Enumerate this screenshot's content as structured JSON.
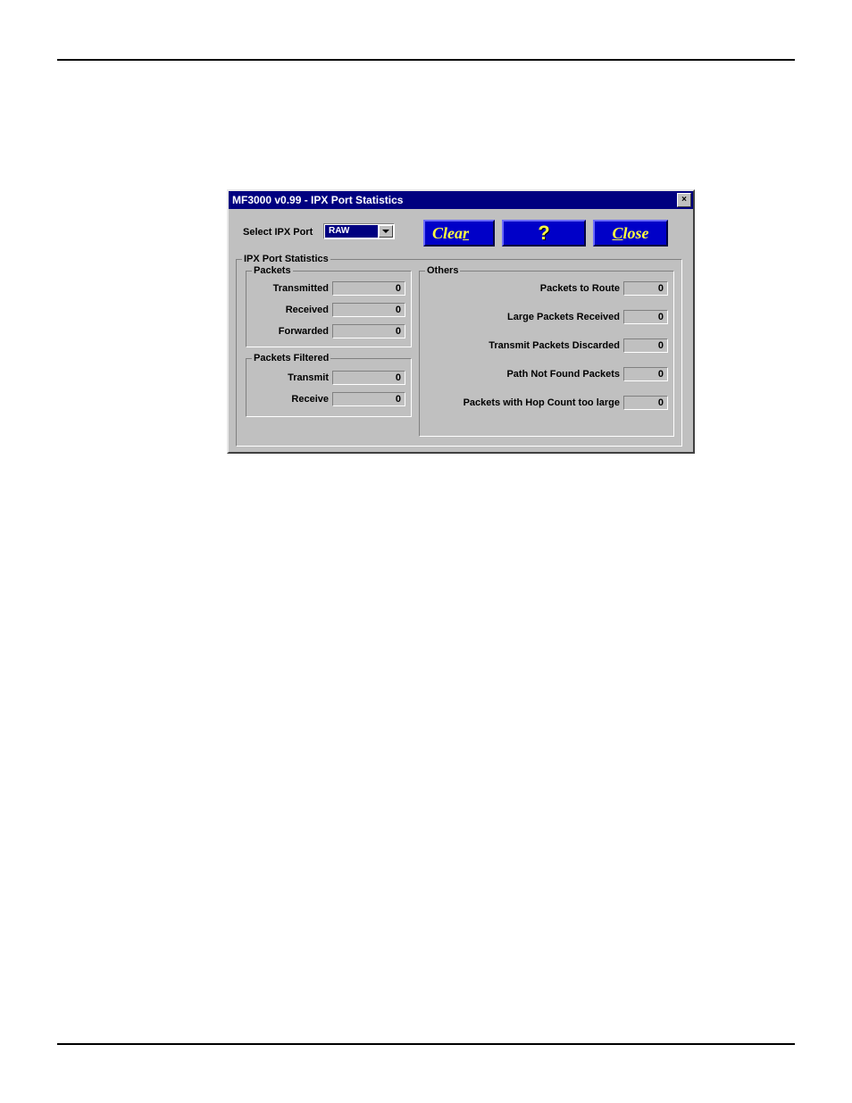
{
  "theme": {
    "page_bg": "#ffffff",
    "window_bg": "#c0c0c0",
    "titlebar_bg": "#000080",
    "titlebar_fg": "#ffffff",
    "button_bg": "#0000c8",
    "button_fg": "#ffff40",
    "selection_bg": "#000080",
    "selection_fg": "#ffffff",
    "border_light": "#ffffff",
    "border_dark": "#808080",
    "border_darker": "#404040"
  },
  "window": {
    "title": "MF3000 v0.99 - IPX Port Statistics",
    "close_x": "✕"
  },
  "top": {
    "select_label": "Select IPX Port",
    "select_value": "RAW"
  },
  "buttons": {
    "clear_pre": "Clea",
    "clear_accel": "r",
    "clear_post": "",
    "help_glyph": "?",
    "close_pre": "",
    "close_accel": "C",
    "close_post": "lose"
  },
  "stats": {
    "group_label": "IPX Port Statistics",
    "packets": {
      "label": "Packets",
      "rows": {
        "transmitted": {
          "label": "Transmitted",
          "value": "0"
        },
        "received": {
          "label": "Received",
          "value": "0"
        },
        "forwarded": {
          "label": "Forwarded",
          "value": "0"
        }
      }
    },
    "filtered": {
      "label": "Packets Filtered",
      "rows": {
        "transmit": {
          "label": "Transmit",
          "value": "0"
        },
        "receive": {
          "label": "Receive",
          "value": "0"
        }
      }
    },
    "others": {
      "label": "Others",
      "rows": {
        "to_route": {
          "label": "Packets to Route",
          "value": "0"
        },
        "large_rx": {
          "label": "Large Packets Received",
          "value": "0"
        },
        "tx_disc": {
          "label": "Transmit Packets Discarded",
          "value": "0"
        },
        "path_nf": {
          "label": "Path Not Found Packets",
          "value": "0"
        },
        "hop_large": {
          "label": "Packets with Hop Count too large",
          "value": "0"
        }
      }
    }
  }
}
